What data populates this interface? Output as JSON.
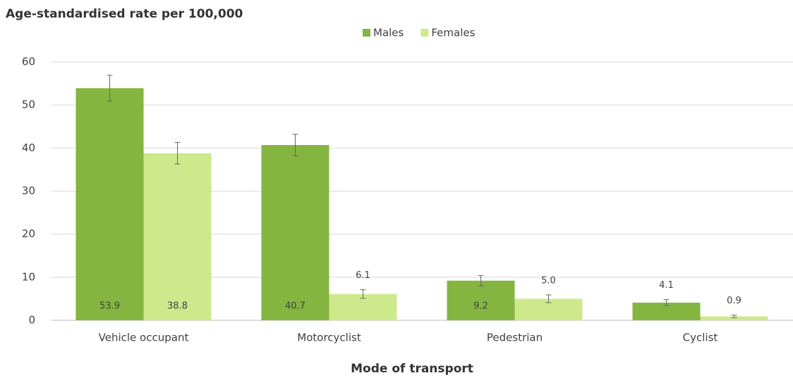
{
  "chart_data": {
    "type": "bar",
    "title": "Age-standardised rate per 100,000",
    "x_label": "Mode of transport",
    "categories": [
      "Vehicle occupant",
      "Motorcyclist",
      "Pedestrian",
      "Cyclist"
    ],
    "series": [
      {
        "name": "Males",
        "color": "#84b541",
        "values": [
          53.9,
          40.7,
          9.2,
          4.1
        ],
        "value_labels": [
          "53.9",
          "40.7",
          "9.2",
          "4.1"
        ],
        "errors": [
          3,
          2.5,
          1.2,
          0.7
        ]
      },
      {
        "name": "Females",
        "color": "#cde98b",
        "values": [
          38.8,
          6.1,
          5.0,
          0.9
        ],
        "value_labels": [
          "38.8",
          "6.1",
          "5.0",
          "0.9"
        ],
        "errors": [
          2.5,
          1,
          0.9,
          0.3
        ]
      }
    ],
    "ylim": [
      0,
      60
    ],
    "yticks": [
      0,
      10,
      20,
      30,
      40,
      50,
      60
    ],
    "grid": true,
    "legend": "top"
  }
}
